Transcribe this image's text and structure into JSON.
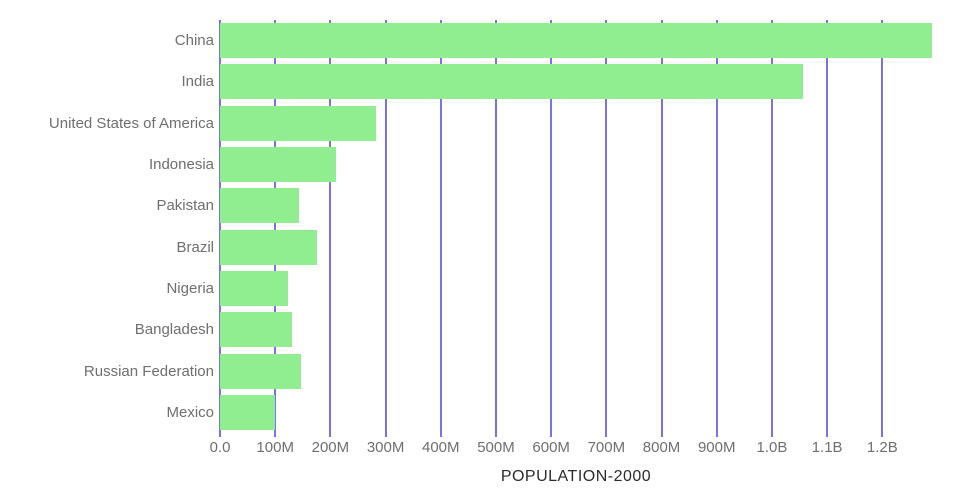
{
  "chart_data": {
    "type": "bar",
    "orientation": "horizontal",
    "title": "POPULATION-2000",
    "xlabel": "POPULATION-2000",
    "ylabel": "",
    "categories": [
      "China",
      "India",
      "United States of America",
      "Indonesia",
      "Pakistan",
      "Brazil",
      "Nigeria",
      "Bangladesh",
      "Russian Federation",
      "Mexico"
    ],
    "values_millions": [
      1290,
      1056,
      282,
      211,
      143,
      175,
      123,
      130,
      147,
      100
    ],
    "x_tick_labels": [
      "0.0",
      "100M",
      "200M",
      "300M",
      "400M",
      "500M",
      "600M",
      "700M",
      "800M",
      "900M",
      "1.0B",
      "1.1B",
      "1.2B"
    ],
    "x_tick_values_millions": [
      0,
      100,
      200,
      300,
      400,
      500,
      600,
      700,
      800,
      900,
      1000,
      1100,
      1200
    ],
    "xlim_millions": [
      0,
      1290
    ],
    "grid": "vertical-gridlines-on",
    "legend": "none",
    "colors": {
      "bar": "#90ee90",
      "gridline": "#7672f2",
      "category_label": "#6f6f6f",
      "tick_label": "#6f6f6f",
      "title": "#2b2b2b",
      "background": "#ffffff"
    }
  }
}
